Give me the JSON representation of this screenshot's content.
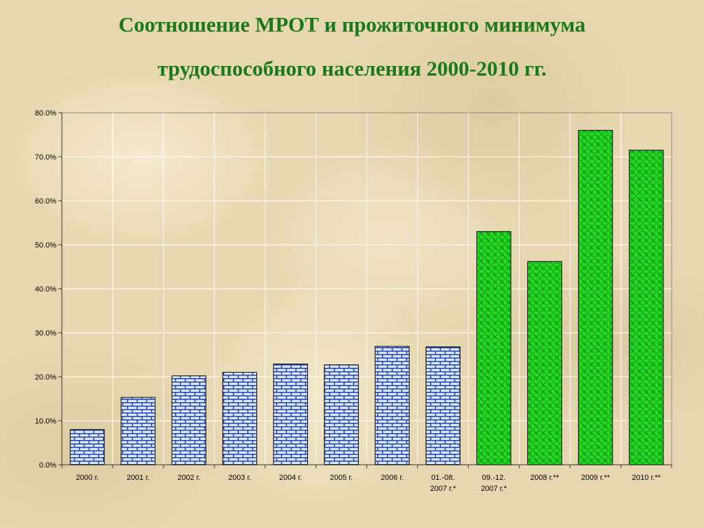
{
  "title": {
    "line1": "Соотношение МРОТ и прожиточного минимума",
    "line2": "трудоспособного населения 2000-2010 гг."
  },
  "chart_data": {
    "type": "bar",
    "title": "Соотношение МРОТ и прожиточного минимума трудоспособного населения 2000-2010 гг.",
    "categories": [
      "2000 г.",
      "2001 г.",
      "2002 г.",
      "2003 г.",
      "2004 г.",
      "2005 г.",
      "2006 г.",
      [
        "01.-08.",
        "2007 г.*"
      ],
      [
        "09.-12.",
        "2007 г.*"
      ],
      "2008 г.**",
      "2009 г.**",
      "2010 г.**"
    ],
    "values": [
      8.0,
      15.3,
      20.2,
      21.0,
      22.9,
      22.7,
      26.9,
      26.8,
      53.0,
      46.2,
      76.0,
      71.5
    ],
    "bar_styles": [
      "blue-brick",
      "blue-brick",
      "blue-brick",
      "blue-brick",
      "blue-brick",
      "blue-brick",
      "blue-brick",
      "blue-brick",
      "green-weave",
      "green-weave",
      "green-weave",
      "green-weave"
    ],
    "y_ticks": [
      "0.0%",
      "10.0%",
      "20.0%",
      "30.0%",
      "40.0%",
      "50.0%",
      "60.0%",
      "70.0%",
      "80.0%"
    ],
    "ylim": [
      0,
      80
    ],
    "y_unit": "%",
    "grid": true,
    "legend": "none",
    "colors": {
      "blue_fill": "#dce9fb",
      "blue_line": "#1f3fb8",
      "green_fill": "#22dd22",
      "green_line": "#0f8f0f",
      "grid": "#ffffff",
      "title": "#1a7a1a"
    }
  }
}
